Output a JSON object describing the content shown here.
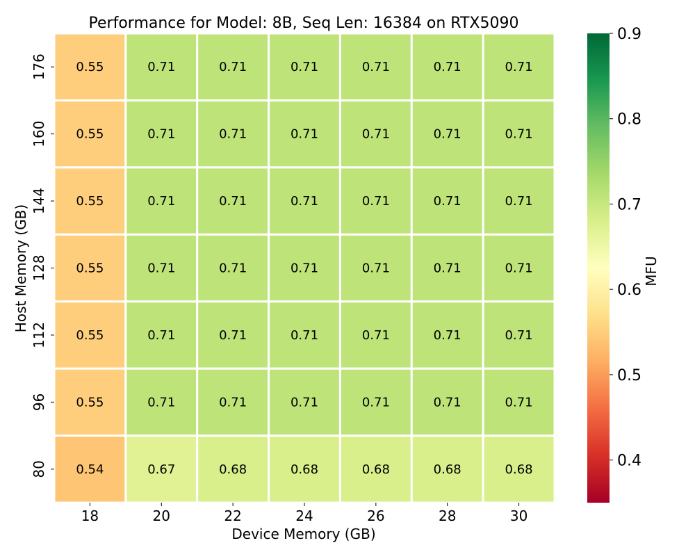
{
  "chart_data": {
    "type": "heatmap",
    "title": "Performance for Model: 8B, Seq Len: 16384 on RTX5090",
    "xlabel": "Device Memory (GB)",
    "ylabel": "Host Memory (GB)",
    "x_categories": [
      "18",
      "20",
      "22",
      "24",
      "26",
      "28",
      "30"
    ],
    "y_categories": [
      "176",
      "160",
      "144",
      "128",
      "112",
      "96",
      "80"
    ],
    "values": [
      [
        0.55,
        0.71,
        0.71,
        0.71,
        0.71,
        0.71,
        0.71
      ],
      [
        0.55,
        0.71,
        0.71,
        0.71,
        0.71,
        0.71,
        0.71
      ],
      [
        0.55,
        0.71,
        0.71,
        0.71,
        0.71,
        0.71,
        0.71
      ],
      [
        0.55,
        0.71,
        0.71,
        0.71,
        0.71,
        0.71,
        0.71
      ],
      [
        0.55,
        0.71,
        0.71,
        0.71,
        0.71,
        0.71,
        0.71
      ],
      [
        0.55,
        0.71,
        0.71,
        0.71,
        0.71,
        0.71,
        0.71
      ],
      [
        0.54,
        0.67,
        0.68,
        0.68,
        0.68,
        0.68,
        0.68
      ]
    ],
    "value_labels": [
      [
        "0.55",
        "0.71",
        "0.71",
        "0.71",
        "0.71",
        "0.71",
        "0.71"
      ],
      [
        "0.55",
        "0.71",
        "0.71",
        "0.71",
        "0.71",
        "0.71",
        "0.71"
      ],
      [
        "0.55",
        "0.71",
        "0.71",
        "0.71",
        "0.71",
        "0.71",
        "0.71"
      ],
      [
        "0.55",
        "0.71",
        "0.71",
        "0.71",
        "0.71",
        "0.71",
        "0.71"
      ],
      [
        "0.55",
        "0.71",
        "0.71",
        "0.71",
        "0.71",
        "0.71",
        "0.71"
      ],
      [
        "0.55",
        "0.71",
        "0.71",
        "0.71",
        "0.71",
        "0.71",
        "0.71"
      ],
      [
        "0.54",
        "0.67",
        "0.68",
        "0.68",
        "0.68",
        "0.68",
        "0.68"
      ]
    ],
    "colorbar": {
      "label": "MFU",
      "range": [
        0.35,
        0.9
      ],
      "ticks": [
        "0.4",
        "0.5",
        "0.6",
        "0.7",
        "0.8",
        "0.9"
      ],
      "colormap": "RdYlGn",
      "stops": [
        "#a50026",
        "#d73027",
        "#f46d43",
        "#fdae61",
        "#fee08b",
        "#ffffbf",
        "#d9ef8b",
        "#a6d96a",
        "#66bd63",
        "#1a9850",
        "#006837"
      ]
    },
    "cell_border_color": "#ffffff",
    "legend": "colorbar-right",
    "grid": false
  }
}
